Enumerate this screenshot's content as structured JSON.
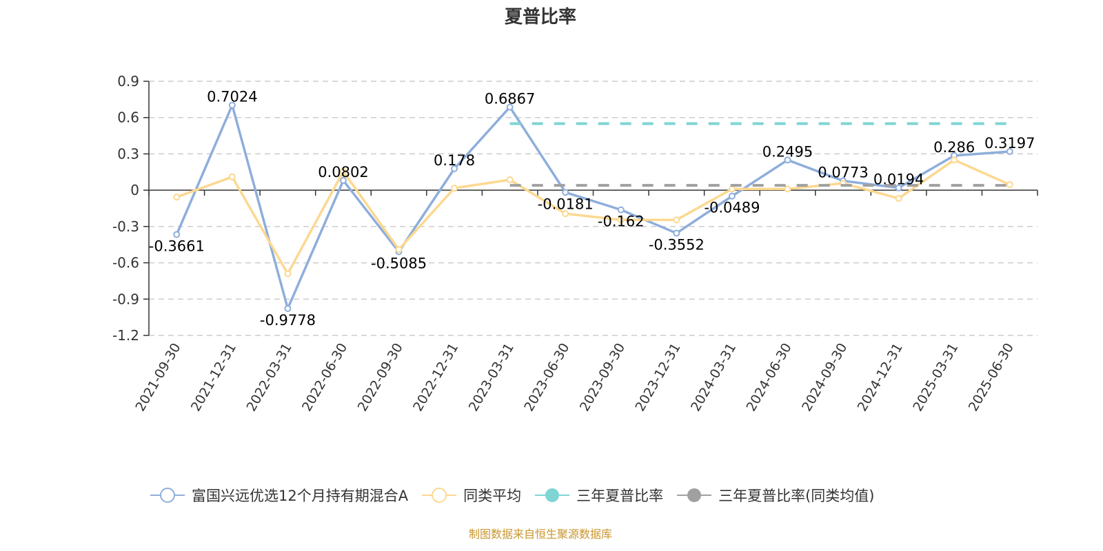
{
  "title": "夏普比率",
  "source_note": "制图数据来自恒生聚源数据库",
  "legend": [
    {
      "label": "富国兴远优选12个月持有期混合A",
      "color": "#8eaedb",
      "icon": "hollow-circle-line-icon"
    },
    {
      "label": "同类平均",
      "color": "#fcd890",
      "icon": "hollow-circle-line-icon"
    },
    {
      "label": "三年夏普比率",
      "color": "#80d4d4",
      "icon": "filled-circle-line-icon"
    },
    {
      "label": "三年夏普比率(同类均值)",
      "color": "#a0a0a0",
      "icon": "filled-circle-line-icon"
    }
  ],
  "chart_data": {
    "type": "line",
    "title": "夏普比率",
    "xlabel": "",
    "ylabel": "",
    "ylim": [
      -1.2,
      0.9
    ],
    "yticks": [
      0.9,
      0.6,
      0.3,
      0,
      -0.3,
      -0.6,
      -0.9,
      -1.2
    ],
    "grid": true,
    "legend_position": "bottom",
    "categories": [
      "2021-09-30",
      "2021-12-31",
      "2022-03-31",
      "2022-06-30",
      "2022-09-30",
      "2022-12-31",
      "2023-03-31",
      "2023-06-30",
      "2023-09-30",
      "2023-12-31",
      "2024-03-31",
      "2024-06-30",
      "2024-09-30",
      "2024-12-31",
      "2025-03-31",
      "2025-06-30"
    ],
    "series": [
      {
        "name": "富国兴远优选12个月持有期混合A",
        "color": "#8eaedb",
        "labeled": true,
        "values": [
          -0.3661,
          0.7024,
          -0.9778,
          0.0802,
          -0.5085,
          0.178,
          0.6867,
          -0.0181,
          -0.162,
          -0.3552,
          -0.0489,
          0.2495,
          0.0773,
          0.0194,
          0.286,
          0.3197
        ]
      },
      {
        "name": "同类平均",
        "color": "#fcd890",
        "labeled": false,
        "values": [
          -0.057,
          0.11,
          -0.69,
          0.155,
          -0.49,
          0.017,
          0.086,
          -0.194,
          -0.245,
          -0.245,
          0.01,
          0.01,
          0.057,
          -0.068,
          0.25,
          0.046
        ]
      },
      {
        "name": "三年夏普比率",
        "color": "#80d4d4",
        "dashed": true,
        "start_index": 6,
        "values": [
          null,
          null,
          null,
          null,
          null,
          null,
          0.55,
          0.55,
          0.55,
          0.55,
          0.55,
          0.55,
          0.55,
          0.55,
          0.55,
          0.55
        ]
      },
      {
        "name": "三年夏普比率(同类均值)",
        "color": "#a0a0a0",
        "dashed": true,
        "start_index": 6,
        "values": [
          null,
          null,
          null,
          null,
          null,
          null,
          0.04,
          0.04,
          0.04,
          0.04,
          0.04,
          0.04,
          0.04,
          0.04,
          0.04,
          0.04
        ]
      }
    ]
  }
}
